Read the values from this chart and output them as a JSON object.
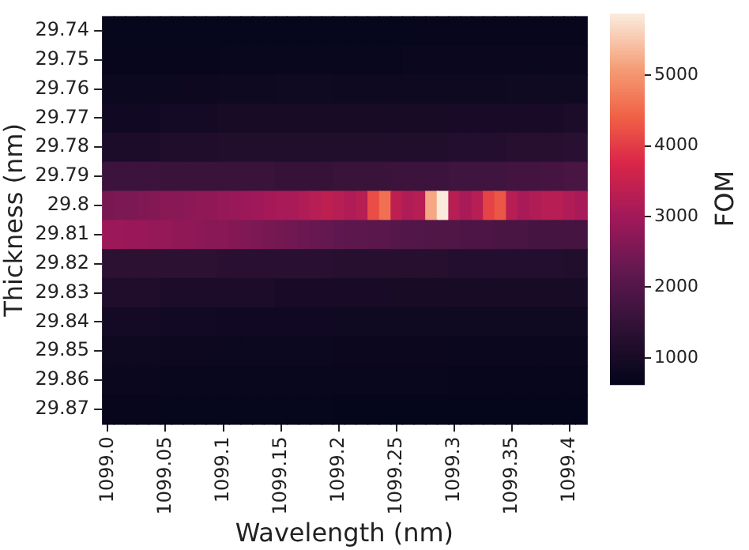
{
  "chart_data": {
    "type": "heatmap",
    "xlabel": "Wavelength (nm)",
    "ylabel": "Thickness (nm)",
    "clabel": "FOM",
    "categories": [
      "1099.0",
      null,
      null,
      null,
      null,
      "1099.05",
      null,
      null,
      null,
      null,
      "1099.1",
      null,
      null,
      null,
      null,
      "1099.15",
      null,
      null,
      null,
      null,
      "1099.2",
      null,
      null,
      null,
      null,
      "1099.25",
      null,
      null,
      null,
      null,
      "1099.3",
      null,
      null,
      null,
      null,
      "1099.35",
      null,
      null,
      null,
      null,
      "1099.4",
      null
    ],
    "y_categories": [
      "29.74",
      "29.75",
      "29.76",
      "29.77",
      "29.78",
      "29.79",
      "29.8",
      "29.81",
      "29.82",
      "29.83",
      "29.84",
      "29.85",
      "29.86",
      "29.87"
    ],
    "clim": [
      630,
      5870
    ],
    "cticks": [
      1000,
      2000,
      3000,
      4000,
      5000
    ],
    "cells": [
      [
        680,
        680,
        680,
        680,
        680,
        680,
        680,
        680,
        680,
        680,
        680,
        680,
        680,
        680,
        680,
        680,
        680,
        680,
        680,
        680,
        680,
        680,
        680,
        680,
        680,
        680,
        680,
        700,
        700,
        700,
        700,
        700,
        700,
        700,
        700,
        700,
        700,
        700,
        700,
        700,
        700,
        700
      ],
      [
        720,
        720,
        720,
        720,
        720,
        720,
        720,
        720,
        720,
        720,
        740,
        740,
        740,
        740,
        740,
        740,
        740,
        740,
        740,
        740,
        750,
        750,
        750,
        750,
        750,
        750,
        760,
        760,
        760,
        760,
        760,
        760,
        760,
        760,
        760,
        770,
        770,
        770,
        770,
        770,
        770,
        770
      ],
      [
        800,
        800,
        800,
        800,
        800,
        800,
        800,
        820,
        820,
        820,
        850,
        850,
        850,
        850,
        850,
        870,
        870,
        870,
        870,
        870,
        850,
        850,
        850,
        850,
        850,
        850,
        850,
        850,
        850,
        850,
        850,
        850,
        850,
        850,
        850,
        870,
        870,
        870,
        870,
        870,
        870,
        870
      ],
      [
        900,
        900,
        900,
        900,
        900,
        950,
        950,
        950,
        950,
        950,
        1000,
        1000,
        1000,
        1000,
        1000,
        1000,
        1000,
        1000,
        1000,
        1000,
        1000,
        1000,
        1000,
        1000,
        1000,
        1000,
        1000,
        1000,
        1000,
        1000,
        1050,
        1050,
        1050,
        1050,
        1050,
        1050,
        1050,
        1050,
        1050,
        1050,
        1100,
        1100
      ],
      [
        1100,
        1100,
        1100,
        1100,
        1100,
        1150,
        1150,
        1150,
        1150,
        1150,
        1200,
        1200,
        1200,
        1200,
        1200,
        1200,
        1200,
        1200,
        1200,
        1200,
        1200,
        1200,
        1200,
        1200,
        1200,
        1200,
        1200,
        1200,
        1200,
        1200,
        1250,
        1250,
        1250,
        1250,
        1250,
        1300,
        1300,
        1300,
        1300,
        1300,
        1350,
        1350
      ],
      [
        1650,
        1650,
        1650,
        1650,
        1650,
        1600,
        1600,
        1600,
        1600,
        1600,
        1600,
        1600,
        1600,
        1600,
        1600,
        1550,
        1550,
        1550,
        1550,
        1550,
        1600,
        1600,
        1600,
        1600,
        1600,
        1650,
        1650,
        1650,
        1650,
        1650,
        1700,
        1700,
        1700,
        1700,
        1700,
        1750,
        1750,
        1750,
        1800,
        1800,
        1850,
        1850
      ],
      [
        2500,
        2550,
        2550,
        2600,
        2650,
        2700,
        2700,
        2750,
        2800,
        2800,
        2850,
        2900,
        2950,
        3000,
        3050,
        3100,
        3100,
        3200,
        3300,
        3400,
        3300,
        3200,
        3300,
        4200,
        4600,
        3400,
        3200,
        3300,
        5200,
        5870,
        3300,
        3100,
        3300,
        4100,
        4300,
        3300,
        3100,
        3200,
        3300,
        3300,
        3200,
        3100
      ],
      [
        2950,
        2950,
        2900,
        2900,
        2850,
        2850,
        2800,
        2800,
        2750,
        2700,
        2700,
        2650,
        2600,
        2550,
        2500,
        2450,
        2400,
        2350,
        2300,
        2250,
        2200,
        2150,
        2150,
        2100,
        2100,
        2050,
        2000,
        2000,
        1950,
        1950,
        1950,
        1900,
        1900,
        1900,
        1850,
        1850,
        1850,
        1800,
        1800,
        1800,
        1800,
        1800
      ],
      [
        1400,
        1400,
        1400,
        1400,
        1400,
        1400,
        1400,
        1400,
        1400,
        1400,
        1350,
        1350,
        1350,
        1350,
        1350,
        1350,
        1350,
        1350,
        1350,
        1350,
        1300,
        1300,
        1300,
        1300,
        1300,
        1300,
        1300,
        1300,
        1300,
        1300,
        1250,
        1250,
        1250,
        1250,
        1250,
        1250,
        1250,
        1250,
        1250,
        1250,
        1200,
        1200
      ],
      [
        1150,
        1150,
        1150,
        1150,
        1150,
        1100,
        1100,
        1100,
        1100,
        1100,
        1100,
        1100,
        1100,
        1100,
        1100,
        1050,
        1050,
        1050,
        1050,
        1050,
        1050,
        1050,
        1050,
        1050,
        1050,
        1000,
        1000,
        1000,
        1000,
        1000,
        1000,
        1000,
        1000,
        1000,
        1000,
        1000,
        1000,
        1000,
        1000,
        1000,
        1000,
        1000
      ],
      [
        950,
        950,
        950,
        950,
        950,
        920,
        920,
        920,
        920,
        920,
        900,
        900,
        900,
        900,
        900,
        900,
        900,
        900,
        900,
        900,
        880,
        880,
        880,
        880,
        880,
        880,
        880,
        880,
        880,
        880,
        860,
        860,
        860,
        860,
        860,
        860,
        860,
        860,
        860,
        860,
        860,
        860
      ],
      [
        830,
        830,
        830,
        830,
        830,
        820,
        820,
        820,
        820,
        820,
        800,
        800,
        800,
        800,
        800,
        800,
        800,
        800,
        800,
        800,
        790,
        790,
        790,
        790,
        790,
        790,
        790,
        790,
        790,
        790,
        780,
        780,
        780,
        780,
        780,
        780,
        780,
        780,
        780,
        780,
        780,
        780
      ],
      [
        760,
        760,
        760,
        760,
        760,
        750,
        750,
        750,
        750,
        750,
        740,
        740,
        740,
        740,
        740,
        740,
        740,
        740,
        740,
        740,
        730,
        730,
        730,
        730,
        730,
        730,
        730,
        730,
        730,
        730,
        720,
        720,
        720,
        720,
        720,
        720,
        720,
        720,
        720,
        720,
        720,
        720
      ],
      [
        700,
        700,
        700,
        700,
        700,
        690,
        690,
        690,
        690,
        690,
        680,
        680,
        680,
        680,
        680,
        680,
        680,
        680,
        680,
        680,
        670,
        670,
        670,
        670,
        670,
        670,
        670,
        670,
        670,
        670,
        660,
        660,
        660,
        660,
        660,
        660,
        660,
        660,
        660,
        660,
        660,
        660
      ]
    ]
  }
}
